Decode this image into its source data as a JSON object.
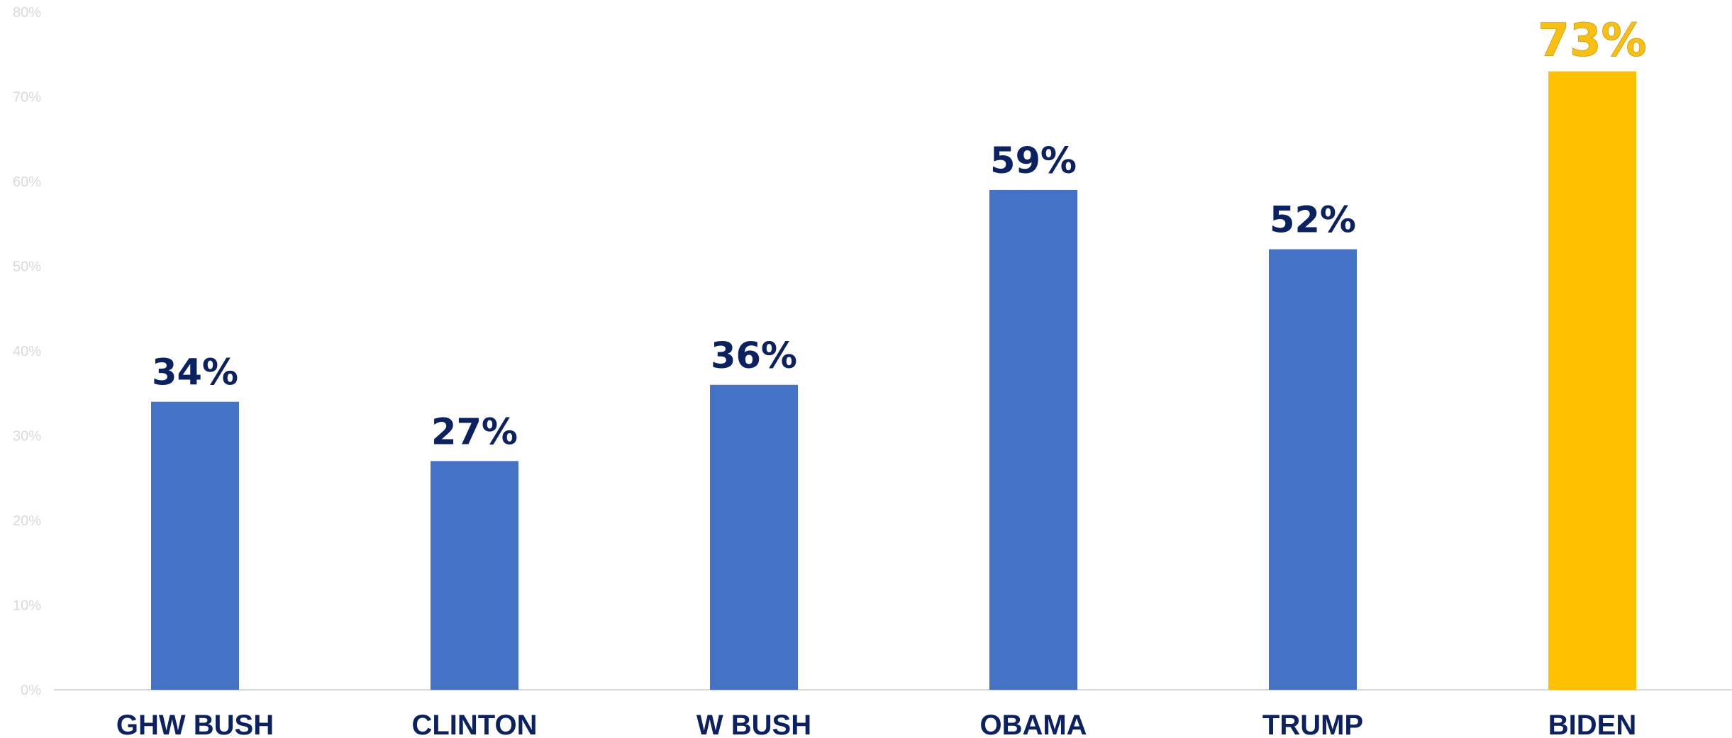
{
  "chart_data": {
    "type": "bar",
    "categories": [
      "GHW BUSH",
      "CLINTON",
      "W BUSH",
      "OBAMA",
      "TRUMP",
      "BIDEN"
    ],
    "series": [
      {
        "values": [
          34,
          27,
          36,
          59,
          52,
          73
        ],
        "data_labels": [
          "34%",
          "27%",
          "36%",
          "59%",
          "52%",
          "73%"
        ]
      }
    ],
    "highlight_index": 5,
    "yticks": [
      "0%",
      "10%",
      "20%",
      "30%",
      "40%",
      "50%",
      "60%",
      "70%",
      "80%"
    ],
    "ylim": [
      0,
      80
    ],
    "title": "",
    "xlabel": "",
    "ylabel": "",
    "grid": false,
    "legend": "none",
    "colors": {
      "bar": "#4472c4",
      "highlight_bar": "#ffc000",
      "label_text": "#0b2160",
      "highlight_label_text": "#f9bf12",
      "axis_tick_text": "#d9d9d9",
      "axis_line": "#d9d9d9"
    }
  }
}
